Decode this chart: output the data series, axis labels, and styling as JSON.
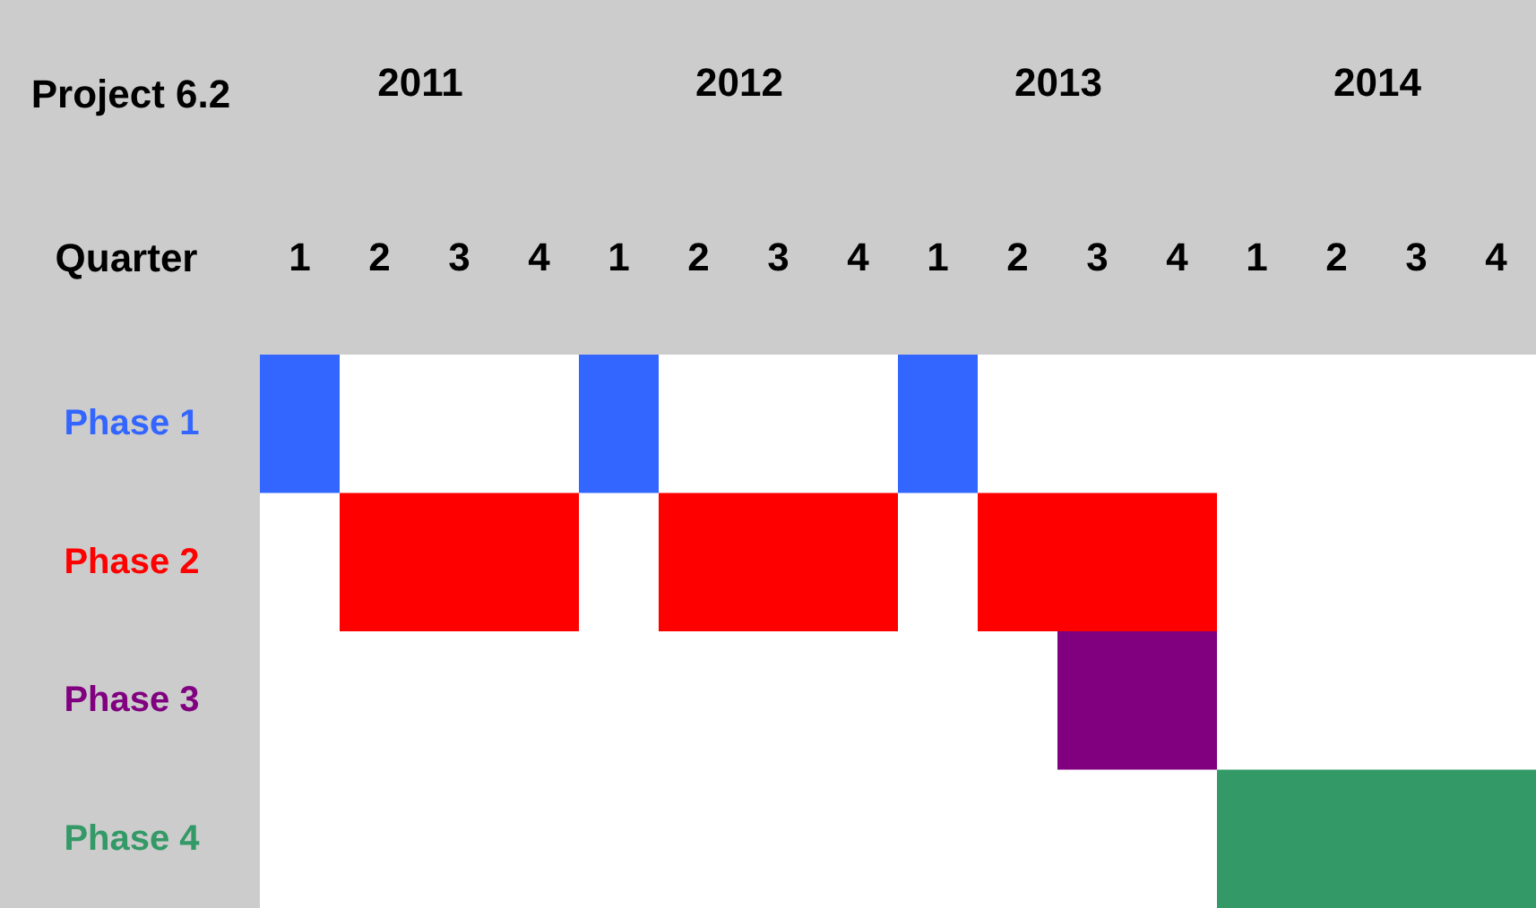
{
  "chart_data": {
    "type": "bar",
    "orientation": "horizontal",
    "title": "Project 6.2",
    "xlabel": "Quarter",
    "categories": [
      "Phase 1",
      "Phase 2",
      "Phase 3",
      "Phase 4"
    ],
    "xlim": [
      2011,
      2015
    ],
    "xticks": [
      {
        "value": 2011.5,
        "label": "2011"
      },
      {
        "value": 2012.5,
        "label": "2012"
      },
      {
        "value": 2013.5,
        "label": "2013"
      },
      {
        "value": 2014.5,
        "label": "2014"
      }
    ],
    "annotations": [
      "1",
      "2",
      "3",
      "4",
      "1",
      "2",
      "3",
      "4",
      "1",
      "2",
      "3",
      "4",
      "1",
      "2",
      "3",
      "4"
    ],
    "series": [
      {
        "values": [
          0.25,
          0.75,
          0.5,
          1
        ],
        "base": [
          2011,
          2011.25,
          2013.5,
          2014
        ],
        "colors": [
          "#3366ff",
          "#ff0000",
          "#800080",
          "#339966"
        ]
      },
      {
        "values": [
          0.25,
          0.75,
          null,
          null
        ],
        "base": [
          2012,
          2012.25,
          null,
          null
        ],
        "colors": [
          "#3366ff",
          "#ff0000",
          null,
          null
        ]
      },
      {
        "values": [
          0.25,
          0.75,
          null,
          null
        ],
        "base": [
          2013,
          2013.25,
          null,
          null
        ],
        "colors": [
          "#3366ff",
          "#ff0000",
          null,
          null
        ]
      }
    ]
  }
}
